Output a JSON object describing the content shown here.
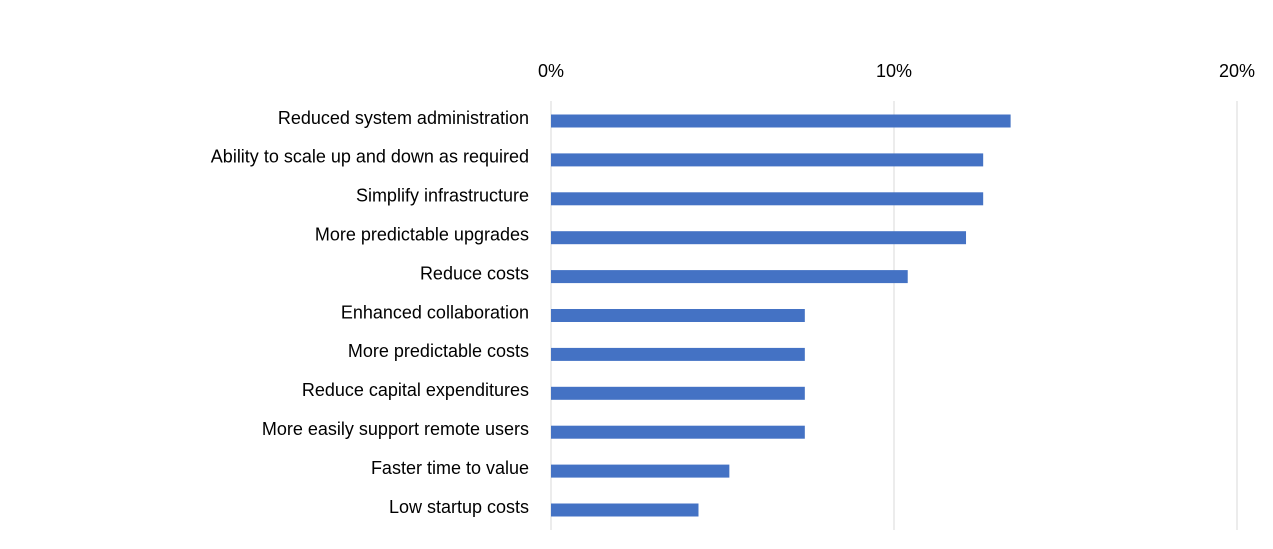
{
  "chart_data": {
    "type": "hbar",
    "categories": [
      "Reduced system administration",
      "Ability to scale up and down as required",
      "Simplify infrastructure",
      "More predictable upgrades",
      "Reduce costs",
      "Enhanced collaboration",
      "More predictable costs",
      "Reduce capital expenditures",
      "More easily support remote users",
      "Faster time to value",
      "Low startup costs"
    ],
    "values": [
      13.4,
      12.6,
      12.6,
      12.1,
      10.4,
      7.4,
      7.4,
      7.4,
      7.4,
      5.2,
      4.3
    ],
    "color": "#4472c4",
    "xlim": [
      0,
      20
    ],
    "xticks": [
      {
        "value": 0,
        "label": "0%"
      },
      {
        "value": 10,
        "label": "10%"
      },
      {
        "value": 20,
        "label": "20%"
      }
    ],
    "grid": true
  }
}
